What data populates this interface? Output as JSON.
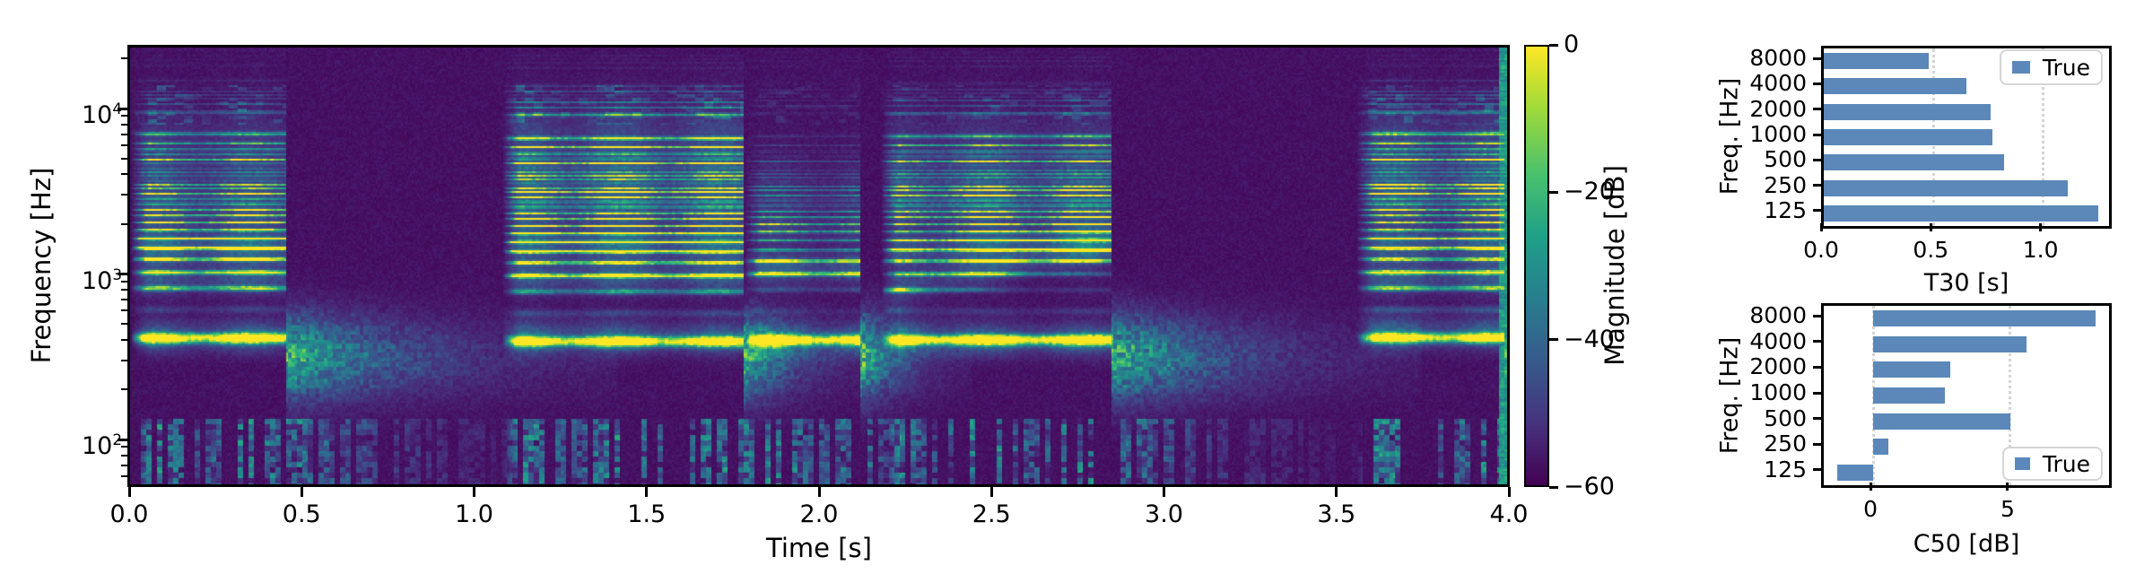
{
  "figure": {
    "background": "#ffffff"
  },
  "colors": {
    "bar_fill": "#5b88b8",
    "spec_background": "#440154",
    "grid_dotted": "#d4d4d4"
  },
  "spectrogram_panel": {
    "xlabel": "Time [s]",
    "ylabel": "Frequency [Hz]",
    "xtick_labels": [
      "0.0",
      "0.5",
      "1.0",
      "1.5",
      "2.0",
      "2.5",
      "3.0",
      "3.5",
      "4.0"
    ],
    "ytick_labels": [
      "10^4",
      "10^3",
      "10^2"
    ]
  },
  "colorbar": {
    "label": "Magnitude [dB]",
    "tick_labels": [
      "0",
      "−20",
      "−40",
      "−60"
    ],
    "tick_values": [
      0,
      -20,
      -40,
      -60
    ],
    "colormap": "viridis"
  },
  "chart_data": [
    {
      "type": "heatmap",
      "subtype": "spectrogram",
      "xlabel": "Time [s]",
      "ylabel": "Frequency [Hz]",
      "value_label": "Magnitude [dB]",
      "x_range_s": [
        0.0,
        4.0
      ],
      "y_range_hz": [
        51,
        24000
      ],
      "y_scale": "log",
      "value_range_db": [
        -60,
        0
      ],
      "colormap": "viridis",
      "xticks": [
        0.0,
        0.5,
        1.0,
        1.5,
        2.0,
        2.5,
        3.0,
        3.5,
        4.0
      ],
      "yticks_hz": [
        10000,
        1000,
        100
      ],
      "render_model": {
        "noise_floor": 0.03,
        "voiced_segments": [
          {
            "t0": 0.02,
            "t1": 0.45,
            "pitch": 215,
            "tail": 0.3,
            "shelf": 0.8,
            "hf_speckle": 0.3,
            "formants": [
              [
                440,
                1.05,
                0
              ],
              [
                980,
                0.75,
                0
              ],
              [
                1500,
                0.95,
                0
              ],
              [
                2200,
                0.4,
                0
              ],
              [
                3200,
                0.32,
                0
              ],
              [
                5000,
                0.26,
                0
              ],
              [
                7200,
                0.2,
                0
              ]
            ]
          },
          {
            "t0": 1.1,
            "t1": 1.78,
            "pitch": 205,
            "tail": 0.12,
            "shelf": 1.0,
            "hf_speckle": 0.25,
            "formants": [
              [
                430,
                1.05,
                0
              ],
              [
                1020,
                0.85,
                0
              ],
              [
                1560,
                0.9,
                0
              ],
              [
                2500,
                0.5,
                0
              ],
              [
                3700,
                0.42,
                0
              ],
              [
                5600,
                0.38,
                0
              ],
              [
                8200,
                0.28,
                0
              ]
            ]
          },
          {
            "t0": 1.8,
            "t1": 2.12,
            "pitch": 210,
            "tail": 0.1,
            "shelf": 0.4,
            "hf_speckle": 0.1,
            "formants": [
              [
                415,
                1.05,
                0
              ],
              [
                1150,
                0.95,
                0
              ],
              [
                1950,
                0.4,
                0
              ],
              [
                3100,
                0.3,
                0
              ]
            ]
          },
          {
            "t0": 2.2,
            "t1": 2.85,
            "pitch": 210,
            "tail": 0.28,
            "shelf": 0.9,
            "hf_speckle": 0.2,
            "formants": [
              [
                420,
                1.1,
                0
              ],
              [
                850,
                0.7,
                650
              ],
              [
                1400,
                0.75,
                300
              ],
              [
                2500,
                0.48,
                0
              ],
              [
                3800,
                0.38,
                0
              ],
              [
                6500,
                0.3,
                0
              ]
            ]
          },
          {
            "t0": 3.58,
            "t1": 3.99,
            "pitch": 215,
            "tail": 0.06,
            "shelf": 1.0,
            "hf_speckle": 0.25,
            "formants": [
              [
                460,
                1.05,
                0
              ],
              [
                1000,
                0.8,
                0
              ],
              [
                1550,
                0.78,
                0
              ],
              [
                2800,
                0.5,
                0
              ],
              [
                4300,
                0.4,
                0
              ],
              [
                7200,
                0.33,
                0
              ]
            ]
          }
        ],
        "low_freq_noise": {
          "fmax_hz": 140,
          "level": 0.55
        },
        "end_stripe": {
          "t0": 3.972,
          "t1": 4.0,
          "level": 0.45
        }
      }
    },
    {
      "type": "bar",
      "orientation": "horizontal",
      "xlabel": "T30 [s]",
      "ylabel": "Freq. [Hz]",
      "categories": [
        "8000",
        "4000",
        "2000",
        "1000",
        "500",
        "250",
        "125"
      ],
      "series": [
        {
          "name": "True",
          "values": [
            0.48,
            0.65,
            0.76,
            0.77,
            0.82,
            1.11,
            1.25
          ]
        }
      ],
      "xlim": [
        0,
        1.3
      ],
      "xticks": [
        0.0,
        0.5,
        1.0
      ],
      "xtick_labels": [
        "0.0",
        "0.5",
        "1.0"
      ],
      "grid": "x-dotted",
      "legend_position": "upper-right"
    },
    {
      "type": "bar",
      "orientation": "horizontal",
      "xlabel": "C50 [dB]",
      "ylabel": "Freq. [Hz]",
      "categories": [
        "8000",
        "4000",
        "2000",
        "1000",
        "500",
        "250",
        "125"
      ],
      "series": [
        {
          "name": "True",
          "values": [
            8.1,
            5.6,
            2.8,
            2.6,
            5.0,
            0.55,
            -1.3
          ]
        }
      ],
      "xlim": [
        -1.8,
        8.6
      ],
      "xticks": [
        0,
        5
      ],
      "xtick_labels": [
        "0",
        "5"
      ],
      "grid": "x-dotted",
      "legend_position": "lower-right"
    }
  ]
}
